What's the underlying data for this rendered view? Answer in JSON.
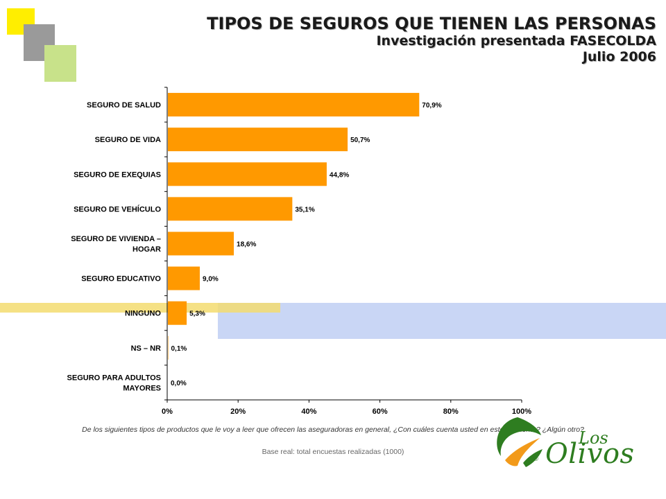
{
  "header": {
    "title": "TIPOS DE SEGUROS QUE TIENEN LAS PERSONAS",
    "subtitle": "Investigación presentada FASECOLDA",
    "date": "Julio 2006"
  },
  "chart_data": {
    "type": "bar",
    "orientation": "horizontal",
    "categories": [
      [
        "SEGURO DE SALUD"
      ],
      [
        "SEGURO DE VIDA"
      ],
      [
        "SEGURO DE EXEQUIAS"
      ],
      [
        "SEGURO DE VEHÍCULO"
      ],
      [
        "SEGURO DE VIVIENDA –",
        "HOGAR"
      ],
      [
        "SEGURO EDUCATIVO"
      ],
      [
        "NINGUNO"
      ],
      [
        "NS – NR"
      ],
      [
        "SEGURO PARA ADULTOS",
        "MAYORES"
      ]
    ],
    "values": [
      70.9,
      50.7,
      44.8,
      35.1,
      18.6,
      9.0,
      5.3,
      0.1,
      0.0
    ],
    "data_labels": [
      "70,9%",
      "50,7%",
      "44,8%",
      "35,1%",
      "18,6%",
      "9,0%",
      "5,3%",
      "0,1%",
      "0,0%"
    ],
    "x_ticks": [
      "0%",
      "20%",
      "40%",
      "60%",
      "80%",
      "100%"
    ],
    "xlim": [
      0,
      100
    ],
    "bar_color": "#ff9900",
    "grid": false
  },
  "footnote": {
    "question": "De los siguientes tipos de productos que le voy a leer que ofrecen las aseguradoras  en general,  ¿Con cuáles cuenta usted en este momento? ¿Algún otro?",
    "base": "Base real: total encuestas realizadas (1000)"
  },
  "logo": {
    "los": "Los",
    "olivos": "Olivos",
    "reg": "®"
  },
  "colors": {
    "deco_yellow": "#ffee00",
    "deco_gray": "#9a9a9a",
    "deco_green": "#c8e28a",
    "band_yellow": "#f3dc70",
    "band_blue": "#c9d6f5",
    "logo_green": "#2e7d20",
    "logo_orange": "#f29a1a"
  }
}
